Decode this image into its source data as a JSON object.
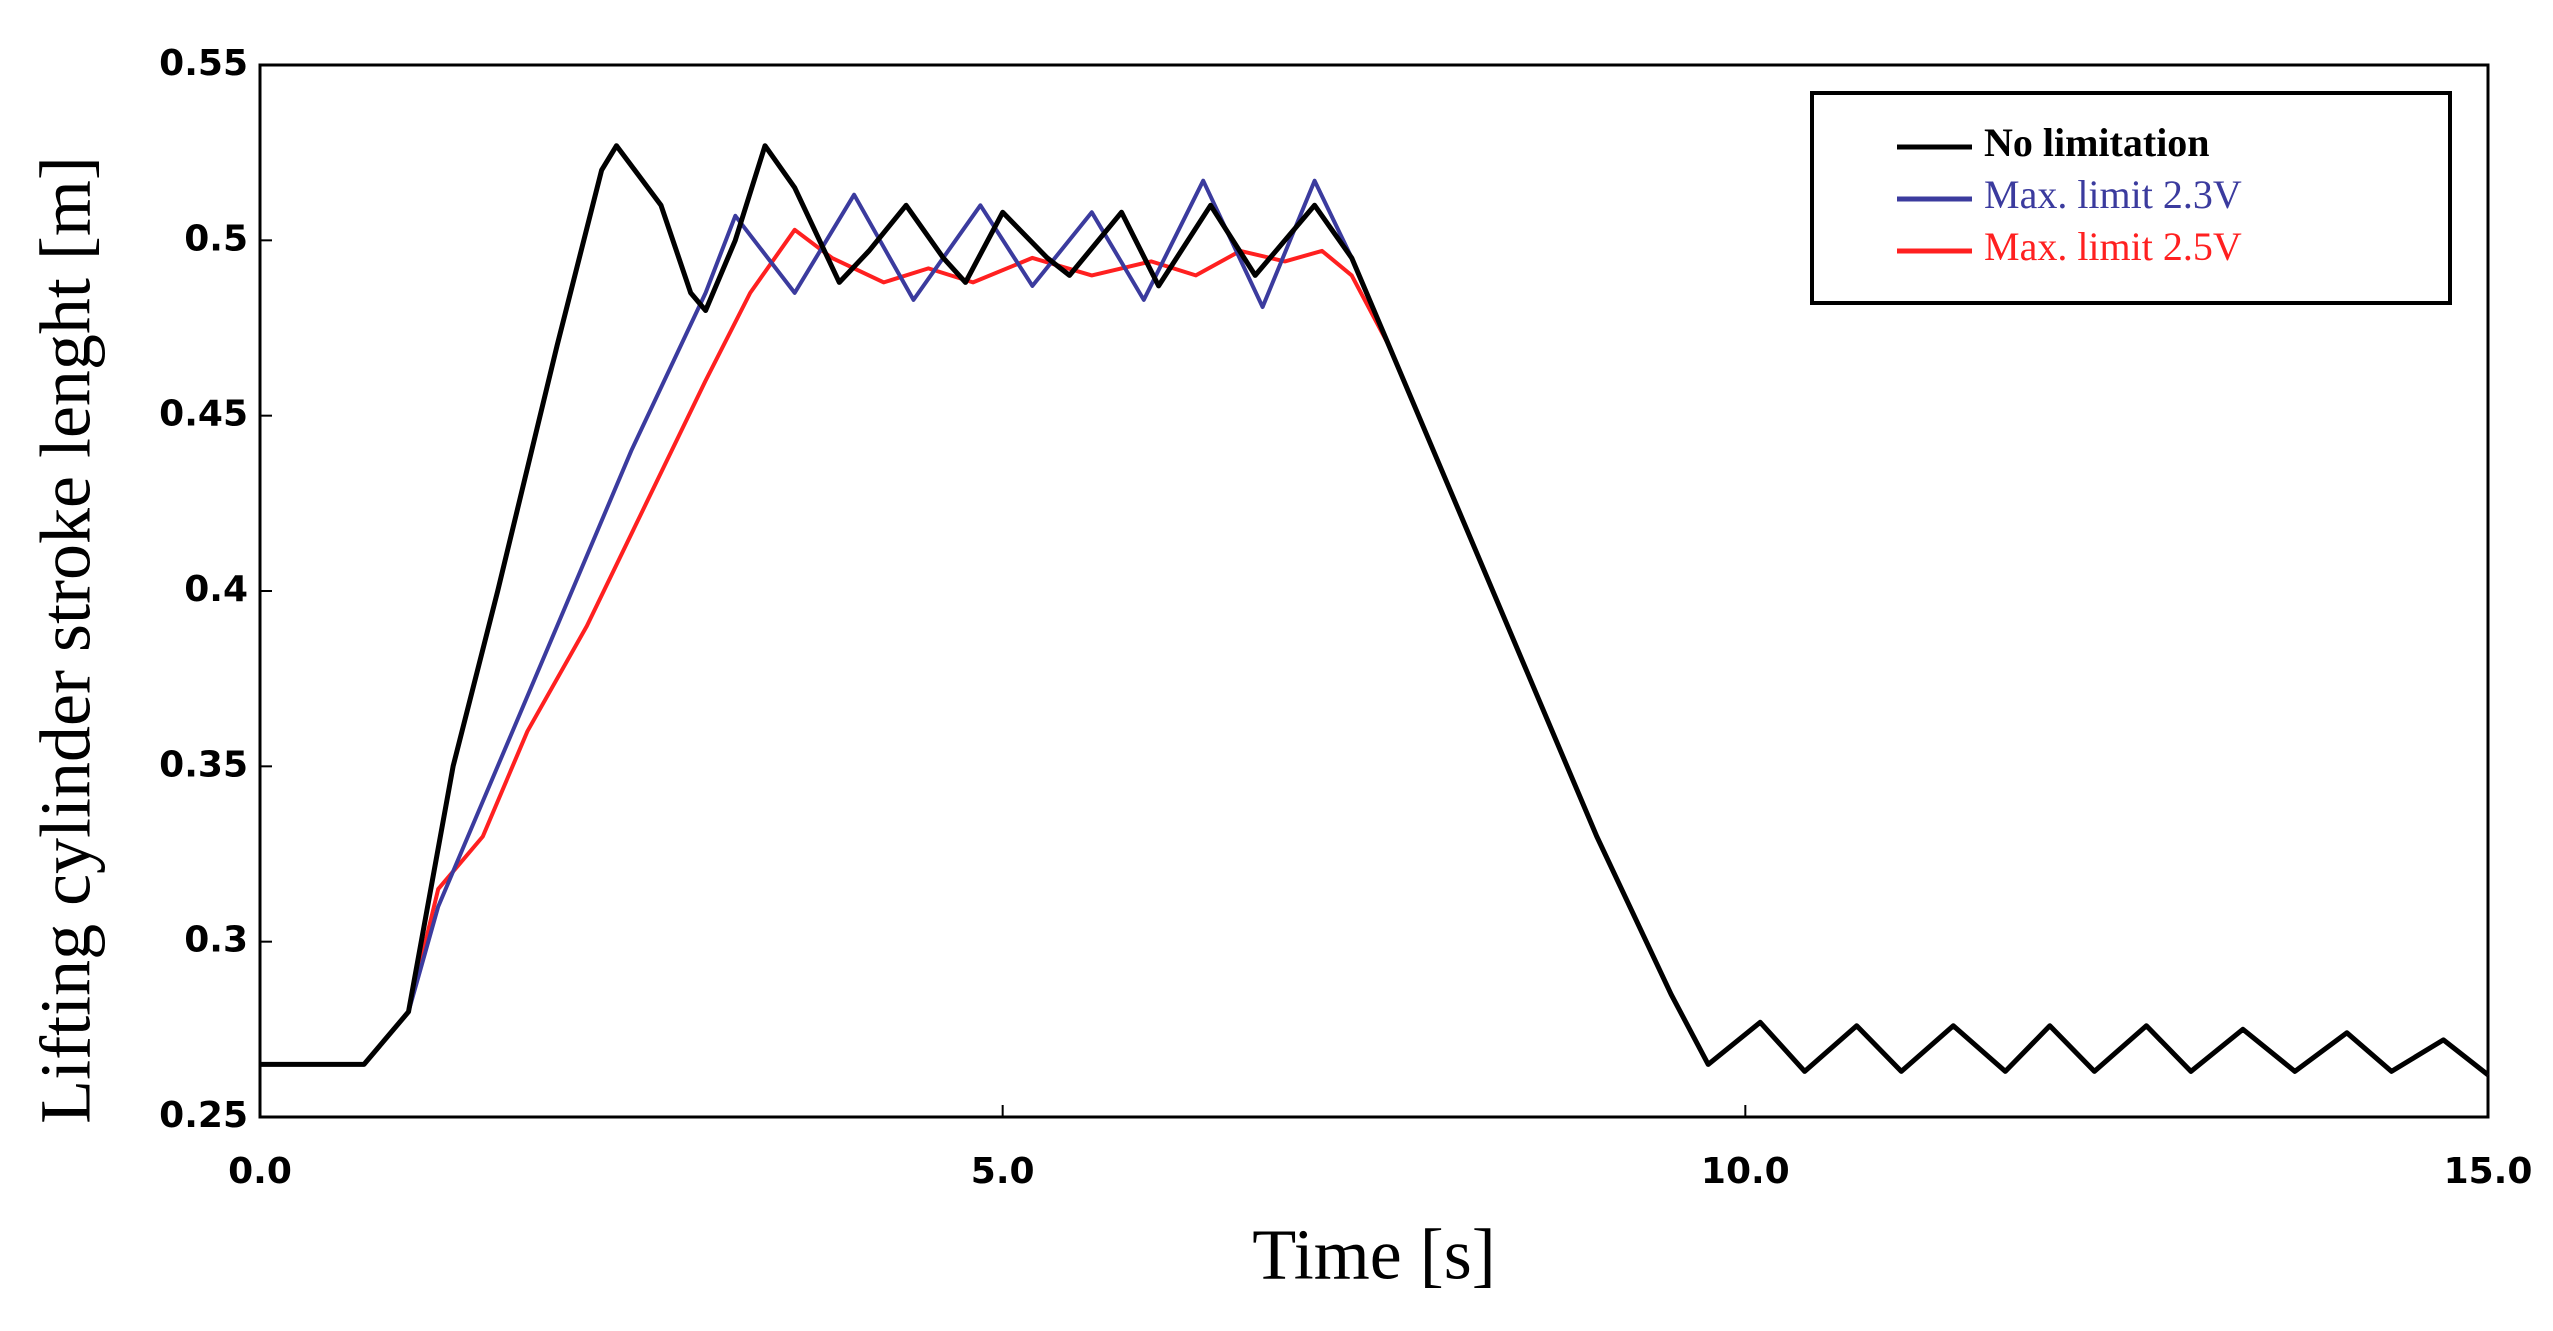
{
  "chart_data": {
    "type": "line",
    "xlabel": "Time [s]",
    "ylabel": "Lifting cylinder stroke lenght [m]",
    "xlim": [
      0,
      15
    ],
    "ylim": [
      0.25,
      0.55
    ],
    "xticks": [
      {
        "value": 0,
        "label": "0.0"
      },
      {
        "value": 5,
        "label": "5.0"
      },
      {
        "value": 10,
        "label": "10.0"
      },
      {
        "value": 15,
        "label": "15.0"
      }
    ],
    "yticks": [
      0.25,
      0.3,
      0.35,
      0.4,
      0.45,
      0.5,
      0.55
    ],
    "legend": "upper right",
    "series": [
      {
        "name": "No limitation",
        "color": "#000000",
        "x": [
          0,
          0.7,
          1.0,
          1.3,
          1.6,
          2.0,
          2.3,
          2.4,
          2.7,
          2.9,
          3.0,
          3.2,
          3.4,
          3.6,
          3.9,
          4.1,
          4.35,
          4.6,
          4.75,
          5.0,
          5.3,
          5.45,
          5.8,
          6.05,
          6.4,
          6.7,
          7.1,
          7.35,
          7.6,
          8.0,
          8.5,
          9.0,
          9.5,
          9.75,
          10.1,
          10.4,
          10.75,
          11.05,
          11.4,
          11.75,
          12.05,
          12.35,
          12.7,
          13.0,
          13.35,
          13.7,
          14.05,
          14.35,
          14.7,
          15.0
        ],
        "values": [
          0.265,
          0.265,
          0.28,
          0.35,
          0.4,
          0.47,
          0.52,
          0.527,
          0.51,
          0.485,
          0.48,
          0.5,
          0.527,
          0.515,
          0.488,
          0.497,
          0.51,
          0.495,
          0.488,
          0.508,
          0.495,
          0.49,
          0.508,
          0.487,
          0.51,
          0.49,
          0.51,
          0.495,
          0.47,
          0.43,
          0.38,
          0.33,
          0.285,
          0.265,
          0.277,
          0.263,
          0.276,
          0.263,
          0.276,
          0.263,
          0.276,
          0.263,
          0.276,
          0.263,
          0.275,
          0.263,
          0.274,
          0.263,
          0.272,
          0.262
        ]
      },
      {
        "name": "Max. limit 2.3V",
        "color": "#3b3b9e",
        "x": [
          0,
          0.7,
          1.0,
          1.2,
          1.5,
          2.0,
          2.5,
          3.0,
          3.2,
          3.6,
          4.0,
          4.4,
          4.85,
          5.2,
          5.6,
          5.95,
          6.35,
          6.75,
          7.1,
          7.35,
          7.6,
          8.0,
          8.5,
          9.0,
          9.5,
          9.75,
          10.1,
          10.4,
          10.75,
          11.05,
          11.4,
          11.75,
          12.05,
          12.35,
          12.7,
          13.0,
          13.35,
          13.7,
          14.05,
          14.35,
          14.7,
          15.0
        ],
        "values": [
          0.265,
          0.265,
          0.28,
          0.31,
          0.34,
          0.39,
          0.44,
          0.485,
          0.507,
          0.485,
          0.513,
          0.483,
          0.51,
          0.487,
          0.508,
          0.483,
          0.517,
          0.481,
          0.517,
          0.495,
          0.47,
          0.43,
          0.38,
          0.33,
          0.285,
          0.265,
          0.277,
          0.263,
          0.276,
          0.263,
          0.276,
          0.263,
          0.276,
          0.263,
          0.276,
          0.263,
          0.275,
          0.263,
          0.274,
          0.263,
          0.272,
          0.262
        ]
      },
      {
        "name": "Max. limit 2.5V",
        "color": "#ff2020",
        "x": [
          0,
          0.7,
          1.0,
          1.2,
          1.5,
          1.8,
          2.2,
          2.6,
          3.0,
          3.3,
          3.6,
          3.85,
          4.2,
          4.5,
          4.8,
          5.2,
          5.6,
          6.0,
          6.3,
          6.6,
          6.9,
          7.15,
          7.35,
          7.6,
          8.0,
          8.5,
          9.0,
          9.5,
          9.75,
          10.1,
          10.4,
          10.75,
          11.05,
          11.4,
          11.75,
          12.05,
          12.35,
          12.7,
          13.0,
          13.35,
          13.7,
          14.05,
          14.35,
          14.7,
          15.0
        ],
        "values": [
          0.265,
          0.265,
          0.28,
          0.315,
          0.33,
          0.36,
          0.39,
          0.425,
          0.46,
          0.485,
          0.503,
          0.495,
          0.488,
          0.492,
          0.488,
          0.495,
          0.49,
          0.494,
          0.49,
          0.497,
          0.494,
          0.497,
          0.49,
          0.47,
          0.43,
          0.38,
          0.33,
          0.285,
          0.265,
          0.277,
          0.263,
          0.276,
          0.263,
          0.276,
          0.263,
          0.276,
          0.263,
          0.276,
          0.263,
          0.275,
          0.263,
          0.274,
          0.263,
          0.272,
          0.262
        ]
      }
    ]
  }
}
